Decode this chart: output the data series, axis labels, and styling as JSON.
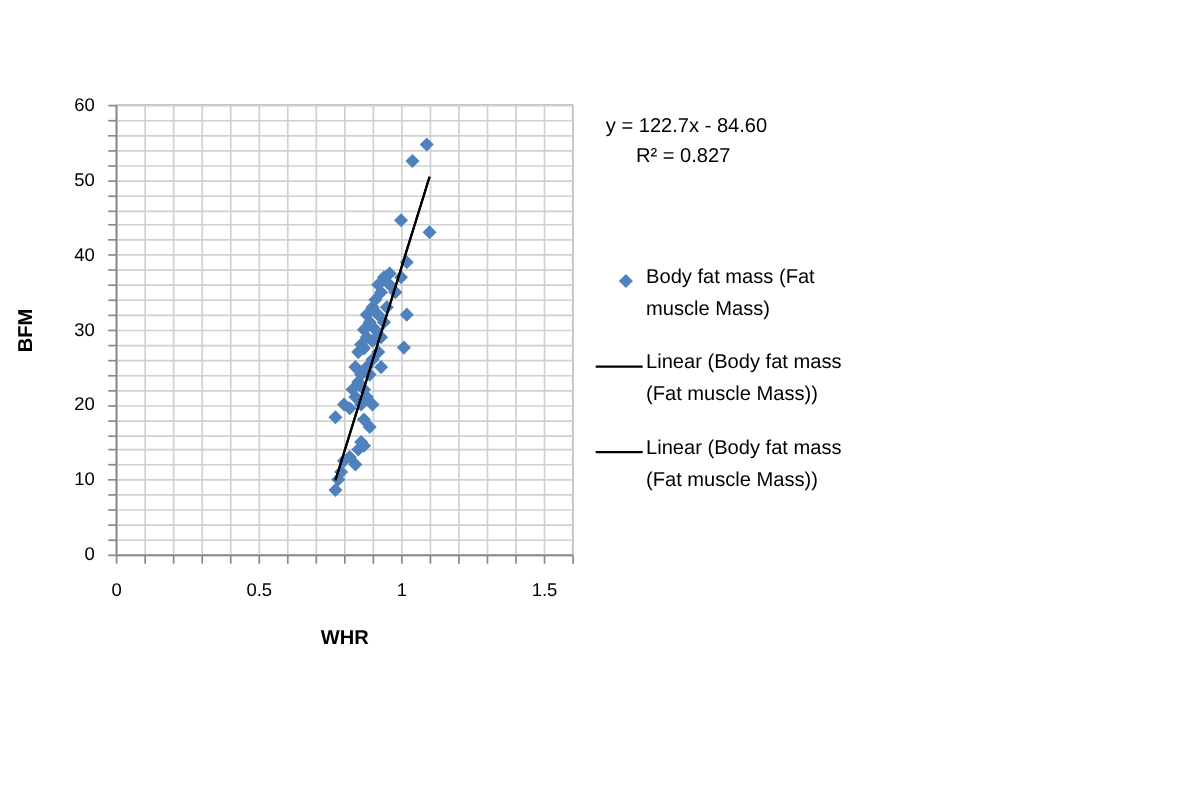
{
  "chart_data": {
    "type": "scatter",
    "xlabel": "WHR",
    "ylabel": "BFM",
    "xlim": [
      0,
      1.6
    ],
    "ylim": [
      0,
      60
    ],
    "xticks": [
      0,
      {
        "value": 0.1,
        "label": null
      },
      {
        "value": 0.2,
        "label": null
      },
      {
        "value": 0.3,
        "label": null
      },
      {
        "value": 0.4,
        "label": null
      },
      0.5,
      {
        "value": 0.6,
        "label": null
      },
      {
        "value": 0.7,
        "label": null
      },
      {
        "value": 0.8,
        "label": null
      },
      {
        "value": 0.9,
        "label": null
      },
      1,
      {
        "value": 1.1,
        "label": null
      },
      {
        "value": 1.2,
        "label": null
      },
      {
        "value": 1.3,
        "label": null
      },
      {
        "value": 1.4,
        "label": null
      },
      1.5,
      {
        "value": 1.6,
        "label": null
      }
    ],
    "yticks": [
      0,
      {
        "value": 2,
        "label": null
      },
      {
        "value": 4,
        "label": null
      },
      {
        "value": 6,
        "label": null
      },
      {
        "value": 8,
        "label": null
      },
      10,
      {
        "value": 12,
        "label": null
      },
      {
        "value": 14,
        "label": null
      },
      {
        "value": 16,
        "label": null
      },
      {
        "value": 18,
        "label": null
      },
      20,
      {
        "value": 22,
        "label": null
      },
      {
        "value": 24,
        "label": null
      },
      {
        "value": 26,
        "label": null
      },
      {
        "value": 28,
        "label": null
      },
      30,
      {
        "value": 32,
        "label": null
      },
      {
        "value": 34,
        "label": null
      },
      {
        "value": 36,
        "label": null
      },
      {
        "value": 38,
        "label": null
      },
      40,
      {
        "value": 42,
        "label": null
      },
      {
        "value": 44,
        "label": null
      },
      {
        "value": 46,
        "label": null
      },
      {
        "value": 48,
        "label": null
      },
      50,
      {
        "value": 52,
        "label": null
      },
      {
        "value": 54,
        "label": null
      },
      {
        "value": 56,
        "label": null
      },
      {
        "value": 58,
        "label": null
      },
      60
    ],
    "grid": true,
    "legend": "right",
    "annotations": [
      "y = 122.7x - 84.60",
      "R² = 0.827"
    ],
    "series": [
      {
        "name": "Body fat mass (Fat muscle Mass)",
        "color": "#4f81bd",
        "marker": "diamond",
        "x": [
          0.77,
          0.78,
          0.79,
          0.8,
          0.82,
          0.84,
          0.85,
          0.86,
          0.87,
          0.77,
          0.82,
          0.8,
          0.84,
          0.86,
          0.83,
          0.85,
          0.87,
          0.88,
          0.84,
          0.86,
          0.88,
          0.89,
          0.85,
          0.87,
          0.9,
          0.86,
          0.88,
          0.9,
          0.92,
          0.87,
          0.89,
          0.91,
          0.93,
          0.88,
          0.9,
          0.92,
          0.94,
          0.91,
          0.93,
          0.95,
          0.92,
          0.94,
          0.96,
          0.98,
          0.96,
          1.0,
          1.01,
          1.02,
          1.02,
          1.0,
          1.1,
          1.04,
          1.09,
          0.93,
          0.89,
          0.87,
          0.9
        ],
        "values": [
          8.6,
          10,
          11,
          12.5,
          13,
          12,
          14,
          15,
          14.5,
          18.3,
          19.5,
          20,
          21,
          20,
          22,
          23,
          22,
          21,
          25,
          24,
          25,
          24,
          27,
          27.5,
          26,
          28,
          29,
          28.5,
          27,
          30,
          31,
          30,
          29,
          32,
          33,
          32,
          31,
          34,
          35,
          33,
          36,
          37,
          36,
          35,
          37.5,
          37,
          27.6,
          32,
          39,
          44.6,
          43,
          52.5,
          54.7,
          25,
          17,
          18,
          20
        ]
      },
      {
        "name": "Linear (Body fat mass (Fat muscle Mass))",
        "color": "#000000",
        "type": "line",
        "x": [
          0.77,
          1.1
        ],
        "values": [
          9.9,
          50.4
        ]
      },
      {
        "name": "Linear (Body fat mass (Fat muscle Mass))",
        "color": "#000000",
        "type": "line",
        "x": [
          0.77,
          1.1
        ],
        "values": [
          9.9,
          50.4
        ]
      }
    ]
  }
}
